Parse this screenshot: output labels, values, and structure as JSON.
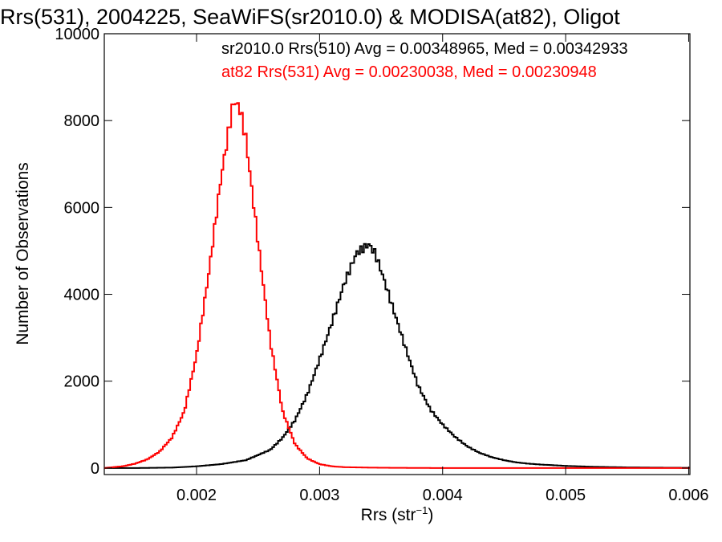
{
  "chart_data": {
    "type": "line",
    "title": "Rrs(531), 2004225, SeaWiFS(sr2010.0) & MODISA(at82), Oligot",
    "xlabel": {
      "base": "Rrs (str",
      "sup": "−1",
      "end": ")"
    },
    "ylabel": "Number of Observations",
    "xlim": [
      0.00125,
      0.00601
    ],
    "ylim": [
      -150,
      10000
    ],
    "xticks": [
      0.002,
      0.003,
      0.004,
      0.005,
      0.006
    ],
    "xtick_labels": [
      "0.002",
      "0.003",
      "0.004",
      "0.005",
      "0.006"
    ],
    "yticks": [
      0,
      2000,
      4000,
      6000,
      8000,
      10000
    ],
    "ytick_labels": [
      "0",
      "2000",
      "4000",
      "6000",
      "8000",
      "10000"
    ],
    "grid": false,
    "series": [
      {
        "name": "sr2010.0 Rrs(510) Avg = 0.00348965, Med = 0.00342933",
        "color": "#000000",
        "x": [
          0.00125,
          0.0015,
          0.0018,
          0.002,
          0.0022,
          0.0024,
          0.0026,
          0.0027,
          0.0028,
          0.0029,
          0.003,
          0.0031,
          0.0032,
          0.0033,
          0.0034,
          0.00345,
          0.0035,
          0.0036,
          0.0037,
          0.0038,
          0.0039,
          0.004,
          0.0041,
          0.0042,
          0.0043,
          0.0044,
          0.0045,
          0.0046,
          0.0047,
          0.0048,
          0.005,
          0.0052,
          0.0055,
          0.0058,
          0.006
        ],
        "values": [
          0,
          0,
          10,
          40,
          90,
          180,
          420,
          700,
          1100,
          1700,
          2500,
          3350,
          4250,
          4950,
          5150,
          4950,
          4550,
          3650,
          2750,
          1900,
          1350,
          1000,
          720,
          500,
          350,
          250,
          180,
          130,
          100,
          80,
          50,
          30,
          15,
          8,
          5
        ]
      },
      {
        "name": "at82 Rrs(531) Avg = 0.00230038, Med = 0.00230948",
        "color": "#ff0000",
        "x": [
          0.00125,
          0.0014,
          0.0015,
          0.0016,
          0.0017,
          0.0018,
          0.0019,
          0.002,
          0.0021,
          0.0022,
          0.0023,
          0.00235,
          0.0024,
          0.0025,
          0.0026,
          0.0027,
          0.0028,
          0.0029,
          0.003,
          0.0031,
          0.0032,
          0.0034,
          0.0036,
          0.004,
          0.006
        ],
        "values": [
          0,
          40,
          100,
          200,
          380,
          700,
          1300,
          2600,
          4500,
          6700,
          8450,
          8300,
          7600,
          5200,
          2900,
          1300,
          550,
          220,
          90,
          40,
          20,
          10,
          5,
          0,
          0
        ]
      }
    ]
  }
}
